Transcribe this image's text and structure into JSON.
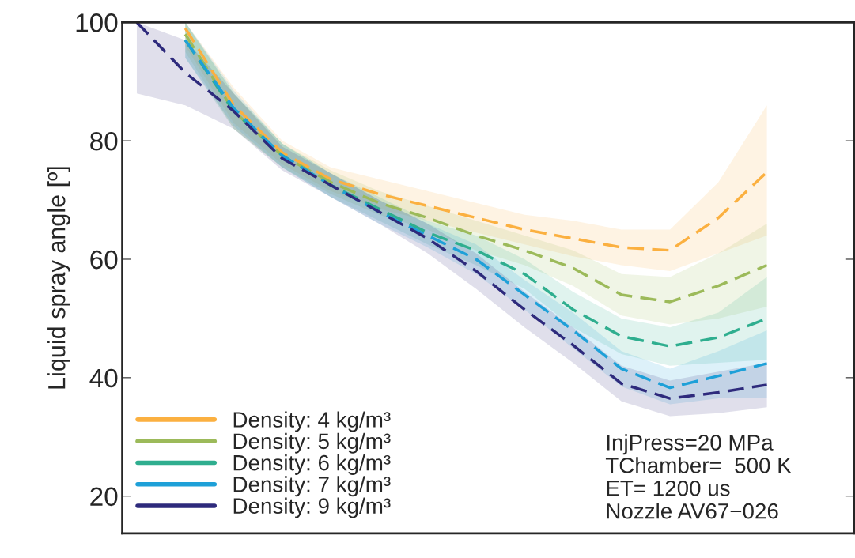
{
  "chart_data": {
    "type": "line",
    "ylabel": "Liquid spray angle [º]",
    "categories": [
      null,
      null,
      null,
      null,
      null,
      null,
      null,
      null,
      null,
      null,
      null,
      null,
      null,
      null
    ],
    "ylim": [
      13.7,
      100
    ],
    "yticks": [
      20,
      40,
      60,
      80,
      100
    ],
    "tick_labels": "y",
    "grid": false,
    "legend": "bottom left",
    "line_style": "dashed",
    "series": [
      {
        "name": "Density: 4 kg/m³",
        "color": "#fbb040",
        "values": [
          null,
          99,
          86,
          78,
          73.5,
          71,
          69,
          67,
          65,
          63.5,
          62,
          61.5,
          67,
          74.7
        ],
        "lower": [
          null,
          96,
          83,
          76,
          71.5,
          68.5,
          66.5,
          64.5,
          62.5,
          60.5,
          59,
          58,
          61,
          64
        ],
        "upper": [
          null,
          100,
          89,
          80,
          75.5,
          73.5,
          71.5,
          69.5,
          67.5,
          66.5,
          65,
          65,
          73,
          86
        ]
      },
      {
        "name": "Density: 5 kg/m³",
        "color": "#9cba5a",
        "values": [
          null,
          98,
          85,
          77.5,
          73,
          69.5,
          67,
          64,
          61.5,
          58.5,
          54,
          52.8,
          55.5,
          59
        ],
        "lower": [
          null,
          95,
          82,
          75.5,
          71,
          67.5,
          65,
          61.5,
          59,
          55.5,
          50.5,
          49,
          50,
          52
        ],
        "upper": [
          null,
          100,
          88,
          79.5,
          75,
          71.5,
          69,
          66.5,
          64,
          61.5,
          57.5,
          57,
          61,
          66
        ]
      },
      {
        "name": "Density: 6 kg/m³",
        "color": "#2fae8f",
        "values": [
          null,
          97,
          85,
          77.5,
          72.5,
          68.5,
          64.5,
          61.5,
          57.5,
          51.5,
          47,
          45.3,
          46.8,
          50
        ],
        "lower": [
          null,
          94,
          82,
          75.5,
          70.5,
          66.5,
          62.5,
          59,
          55,
          48.5,
          44,
          42,
          42.5,
          43
        ],
        "upper": [
          null,
          100,
          88,
          79.5,
          74.5,
          70.5,
          66.5,
          64,
          60,
          54.5,
          50,
          48.5,
          51,
          57
        ]
      },
      {
        "name": "Density: 7 kg/m³",
        "color": "#1ea0d8",
        "values": [
          null,
          97,
          85.5,
          77.5,
          72.5,
          68,
          64,
          60,
          54,
          48,
          41.5,
          38.3,
          40.3,
          42.4
        ],
        "lower": [
          null,
          94,
          82.5,
          75.5,
          70.5,
          66,
          62,
          57.5,
          51.5,
          45,
          38.5,
          35.5,
          36.5,
          36.5
        ],
        "upper": [
          null,
          100,
          88.5,
          79.5,
          74.5,
          70,
          66,
          62.5,
          56.5,
          51,
          44.5,
          41.5,
          44.5,
          48
        ]
      },
      {
        "name": "Density: 9 kg/m³",
        "color": "#2e2a7c",
        "values": [
          100,
          91.5,
          85,
          77,
          72.5,
          68,
          63.5,
          58,
          51.5,
          45.5,
          39,
          36.5,
          37.5,
          38.8
        ],
        "lower": [
          88,
          86,
          82,
          75,
          70.5,
          66,
          61,
          55,
          48.5,
          42.5,
          36,
          33.5,
          34,
          35
        ],
        "upper": [
          100,
          97,
          88,
          79,
          74.5,
          70,
          66,
          61,
          54.5,
          48.5,
          42,
          39.5,
          41,
          42.5
        ]
      }
    ],
    "annotations": [
      "InjPress=20 MPa\nTChamber=  500 K\nET= 1200 us\nNozzle AV67−026"
    ]
  }
}
